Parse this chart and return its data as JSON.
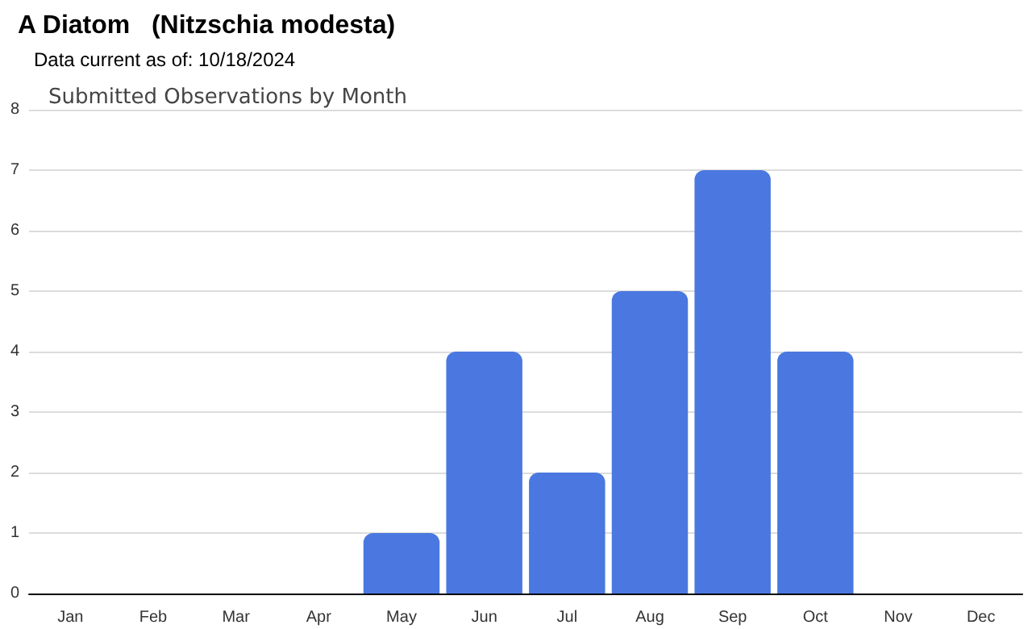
{
  "chart_data": {
    "type": "bar",
    "title": "A Diatom   (Nitzschia modesta)",
    "subtitle": "Data current as of: 10/18/2024",
    "annotations": [
      "Submitted Observations by Month"
    ],
    "categories": [
      "Jan",
      "Feb",
      "Mar",
      "Apr",
      "May",
      "Jun",
      "Jul",
      "Aug",
      "Sep",
      "Oct",
      "Nov",
      "Dec"
    ],
    "values": [
      0,
      0,
      0,
      0,
      1,
      4,
      2,
      5,
      7,
      4,
      0,
      0
    ],
    "color": "#4a78e0",
    "ylim": [
      0,
      8
    ],
    "yticks": [
      0,
      1,
      2,
      3,
      4,
      5,
      6,
      7,
      8
    ],
    "grid": "y"
  }
}
